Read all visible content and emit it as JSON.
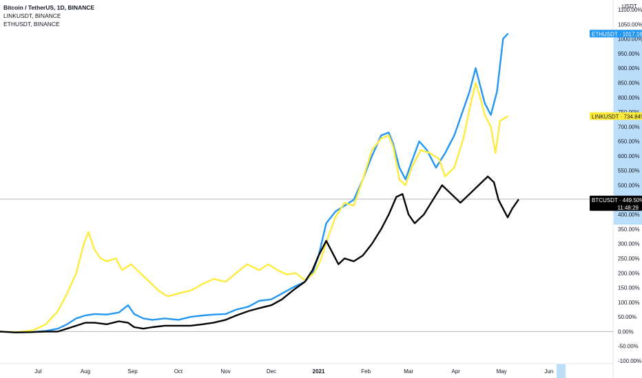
{
  "legend": {
    "main": "Bitcoin / TetherUS, 1D, BINANCE",
    "second": "LINKUSDT, BINANCE",
    "third": "ETHUSDT, BINANCE"
  },
  "axis_unit": "USDT",
  "tags": {
    "eth": "ETHUSDT · 1017.16%",
    "link": "LINKUSDT · 734.84%",
    "btc": "BTCUSDT · 449.50%",
    "countdown": "11:48:29"
  },
  "chart_data": {
    "type": "line",
    "y_unit": "%",
    "ylim": [
      -100,
      1100
    ],
    "y_ticks": [
      "1100.00%",
      "1050.00%",
      "1000.00%",
      "950.00%",
      "900.00%",
      "850.00%",
      "800.00%",
      "750.00%",
      "700.00%",
      "650.00%",
      "600.00%",
      "550.00%",
      "500.00%",
      "450.00%",
      "400.00%",
      "350.00%",
      "300.00%",
      "250.00%",
      "200.00%",
      "150.00%",
      "100.00%",
      "50.00%",
      "0.00%",
      "-50.00%",
      "-100.00%"
    ],
    "y_tick_values": [
      1100,
      1050,
      1000,
      950,
      900,
      850,
      800,
      750,
      700,
      650,
      600,
      550,
      500,
      450,
      400,
      350,
      300,
      250,
      200,
      150,
      100,
      50,
      0,
      -50,
      -100
    ],
    "x_ticks": [
      {
        "label": "Jul",
        "t": 25,
        "bold": false
      },
      {
        "label": "Aug",
        "t": 56,
        "bold": false
      },
      {
        "label": "Sep",
        "t": 87,
        "bold": false
      },
      {
        "label": "Oct",
        "t": 117,
        "bold": false
      },
      {
        "label": "Nov",
        "t": 148,
        "bold": false
      },
      {
        "label": "Dec",
        "t": 178,
        "bold": false
      },
      {
        "label": "2021",
        "t": 209,
        "bold": true
      },
      {
        "label": "Feb",
        "t": 240,
        "bold": false
      },
      {
        "label": "Mar",
        "t": 268,
        "bold": false
      },
      {
        "label": "Apr",
        "t": 299,
        "bold": false
      },
      {
        "label": "May",
        "t": 329,
        "bold": false
      },
      {
        "label": "Jun",
        "t": 360,
        "bold": false
      }
    ],
    "x_range": [
      0,
      380
    ],
    "grid": false,
    "series": [
      {
        "name": "ETHUSDT",
        "color": "#2196f3",
        "points": [
          [
            0,
            0
          ],
          [
            10,
            -3
          ],
          [
            20,
            -2
          ],
          [
            30,
            2
          ],
          [
            38,
            10
          ],
          [
            44,
            25
          ],
          [
            50,
            45
          ],
          [
            56,
            55
          ],
          [
            62,
            60
          ],
          [
            70,
            58
          ],
          [
            78,
            65
          ],
          [
            84,
            90
          ],
          [
            88,
            60
          ],
          [
            94,
            45
          ],
          [
            100,
            40
          ],
          [
            108,
            45
          ],
          [
            117,
            40
          ],
          [
            125,
            50
          ],
          [
            133,
            55
          ],
          [
            140,
            58
          ],
          [
            148,
            60
          ],
          [
            155,
            75
          ],
          [
            163,
            85
          ],
          [
            170,
            105
          ],
          [
            178,
            110
          ],
          [
            185,
            130
          ],
          [
            192,
            150
          ],
          [
            200,
            170
          ],
          [
            205,
            200
          ],
          [
            209,
            260
          ],
          [
            214,
            370
          ],
          [
            220,
            410
          ],
          [
            226,
            430
          ],
          [
            232,
            450
          ],
          [
            238,
            520
          ],
          [
            244,
            600
          ],
          [
            250,
            670
          ],
          [
            255,
            680
          ],
          [
            258,
            640
          ],
          [
            262,
            560
          ],
          [
            266,
            520
          ],
          [
            270,
            580
          ],
          [
            275,
            650
          ],
          [
            280,
            620
          ],
          [
            286,
            560
          ],
          [
            292,
            610
          ],
          [
            298,
            670
          ],
          [
            304,
            760
          ],
          [
            308,
            820
          ],
          [
            312,
            900
          ],
          [
            315,
            840
          ],
          [
            318,
            780
          ],
          [
            322,
            740
          ],
          [
            326,
            820
          ],
          [
            330,
            1000
          ],
          [
            333,
            1017
          ]
        ]
      },
      {
        "name": "LINKUSDT",
        "color": "#ffeb3b",
        "points": [
          [
            0,
            0
          ],
          [
            8,
            -2
          ],
          [
            15,
            0
          ],
          [
            22,
            5
          ],
          [
            30,
            25
          ],
          [
            38,
            70
          ],
          [
            44,
            130
          ],
          [
            50,
            200
          ],
          [
            55,
            300
          ],
          [
            58,
            340
          ],
          [
            62,
            280
          ],
          [
            66,
            250
          ],
          [
            70,
            240
          ],
          [
            76,
            250
          ],
          [
            80,
            210
          ],
          [
            86,
            230
          ],
          [
            92,
            200
          ],
          [
            98,
            170
          ],
          [
            104,
            140
          ],
          [
            110,
            120
          ],
          [
            117,
            130
          ],
          [
            125,
            140
          ],
          [
            132,
            160
          ],
          [
            140,
            180
          ],
          [
            148,
            170
          ],
          [
            155,
            200
          ],
          [
            162,
            230
          ],
          [
            170,
            210
          ],
          [
            176,
            230
          ],
          [
            182,
            210
          ],
          [
            188,
            195
          ],
          [
            194,
            200
          ],
          [
            200,
            175
          ],
          [
            206,
            200
          ],
          [
            210,
            240
          ],
          [
            215,
            320
          ],
          [
            220,
            390
          ],
          [
            226,
            440
          ],
          [
            232,
            430
          ],
          [
            238,
            520
          ],
          [
            244,
            620
          ],
          [
            250,
            660
          ],
          [
            255,
            670
          ],
          [
            258,
            630
          ],
          [
            262,
            520
          ],
          [
            266,
            500
          ],
          [
            270,
            560
          ],
          [
            276,
            620
          ],
          [
            282,
            610
          ],
          [
            288,
            590
          ],
          [
            292,
            530
          ],
          [
            298,
            560
          ],
          [
            304,
            660
          ],
          [
            308,
            760
          ],
          [
            312,
            850
          ],
          [
            315,
            800
          ],
          [
            318,
            740
          ],
          [
            322,
            700
          ],
          [
            325,
            610
          ],
          [
            328,
            720
          ],
          [
            333,
            735
          ]
        ]
      },
      {
        "name": "BTCUSDT",
        "color": "#000000",
        "points": [
          [
            0,
            0
          ],
          [
            10,
            -3
          ],
          [
            20,
            -2
          ],
          [
            30,
            0
          ],
          [
            38,
            0
          ],
          [
            44,
            10
          ],
          [
            50,
            20
          ],
          [
            56,
            30
          ],
          [
            62,
            30
          ],
          [
            70,
            25
          ],
          [
            78,
            35
          ],
          [
            84,
            30
          ],
          [
            88,
            15
          ],
          [
            94,
            10
          ],
          [
            100,
            15
          ],
          [
            108,
            20
          ],
          [
            117,
            20
          ],
          [
            125,
            20
          ],
          [
            133,
            25
          ],
          [
            140,
            30
          ],
          [
            148,
            40
          ],
          [
            155,
            55
          ],
          [
            163,
            70
          ],
          [
            170,
            80
          ],
          [
            178,
            90
          ],
          [
            185,
            110
          ],
          [
            192,
            140
          ],
          [
            200,
            170
          ],
          [
            205,
            210
          ],
          [
            209,
            260
          ],
          [
            214,
            310
          ],
          [
            218,
            270
          ],
          [
            222,
            230
          ],
          [
            226,
            250
          ],
          [
            232,
            240
          ],
          [
            238,
            260
          ],
          [
            244,
            300
          ],
          [
            250,
            350
          ],
          [
            255,
            400
          ],
          [
            260,
            460
          ],
          [
            264,
            470
          ],
          [
            268,
            400
          ],
          [
            272,
            370
          ],
          [
            278,
            400
          ],
          [
            284,
            450
          ],
          [
            290,
            500
          ],
          [
            296,
            470
          ],
          [
            302,
            440
          ],
          [
            308,
            470
          ],
          [
            314,
            500
          ],
          [
            320,
            530
          ],
          [
            324,
            510
          ],
          [
            327,
            450
          ],
          [
            330,
            420
          ],
          [
            333,
            390
          ],
          [
            336,
            420
          ],
          [
            340,
            450
          ]
        ]
      }
    ]
  }
}
